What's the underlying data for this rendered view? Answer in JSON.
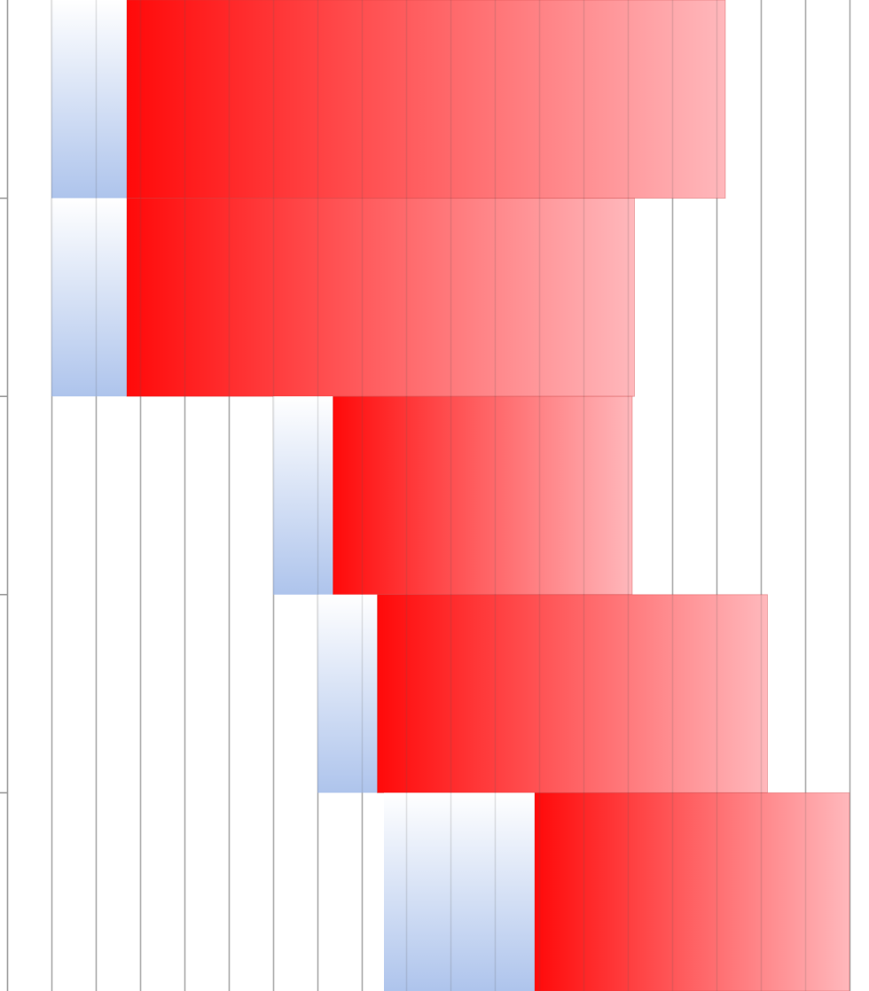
{
  "chart_data": {
    "type": "bar",
    "orientation": "horizontal",
    "stacked": true,
    "title": "",
    "xlabel": "",
    "ylabel": "",
    "grid": true,
    "legend": "none",
    "xlim": [
      0,
      19
    ],
    "categories": [
      "",
      "",
      "",
      "",
      ""
    ],
    "series": [
      {
        "role": "offset",
        "color": "#ffffff",
        "values": [
          1,
          1,
          6,
          7,
          8.5
        ],
        "visible": false
      },
      {
        "color_from": "#ffffff",
        "color_to": "#aec4ec",
        "gradient": "vertical",
        "values": [
          1.7,
          1.7,
          1.35,
          1.35,
          3.4
        ]
      },
      {
        "color_from": "#ff0a0a",
        "color_to": "#ffb8bc",
        "gradient": "horizontal",
        "values": [
          13.5,
          11.45,
          6.75,
          8.8,
          7.1
        ]
      }
    ]
  }
}
